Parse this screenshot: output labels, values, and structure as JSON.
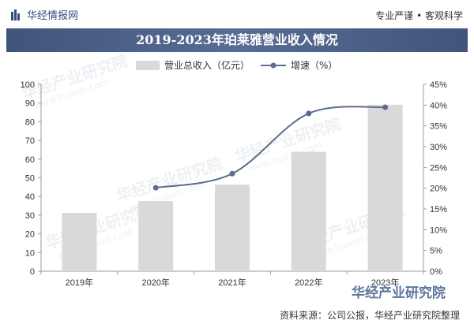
{
  "header": {
    "brand": "华经情报网",
    "tagline": "专业严谨 • 客观科学"
  },
  "footer": {
    "source": "资料来源：公司公报，华经产业研究院整理",
    "logo_text": "华经产业研究院"
  },
  "watermark": {
    "text": "华经产业研究院",
    "url": "www.huaon.com"
  },
  "colors": {
    "bar": "#d9d9d9",
    "line": "#5b6d8e",
    "title_band": "#4a5d82"
  },
  "chart_data": {
    "type": "bar+line",
    "title": "2019-2023年珀莱雅营业收入情况",
    "categories": [
      "2019年",
      "2020年",
      "2021年",
      "2022年",
      "2023年"
    ],
    "series": [
      {
        "name": "营业总收入（亿元）",
        "type": "bar",
        "axis": "left",
        "values": [
          31.2,
          37.5,
          46.3,
          63.9,
          89.1
        ]
      },
      {
        "name": "增速（%）",
        "type": "line",
        "axis": "right",
        "values": [
          null,
          20.1,
          23.5,
          38.0,
          39.5
        ]
      }
    ],
    "y_left": {
      "min": 0,
      "max": 100,
      "step": 10,
      "ticks": [
        "0",
        "10",
        "20",
        "30",
        "40",
        "50",
        "60",
        "70",
        "80",
        "90",
        "100"
      ]
    },
    "y_right": {
      "min": 0,
      "max": 45,
      "step": 5,
      "ticks": [
        "0%",
        "5%",
        "10%",
        "15%",
        "20%",
        "25%",
        "30%",
        "35%",
        "40%",
        "45%"
      ]
    },
    "legend": {
      "position": "top-center"
    },
    "grid": false
  }
}
